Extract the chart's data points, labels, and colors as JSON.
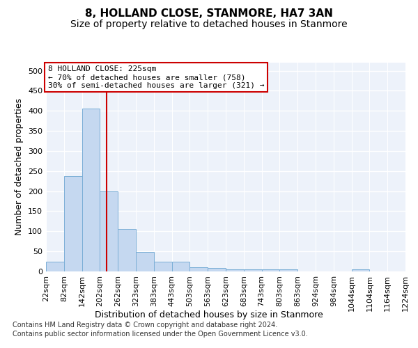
{
  "title": "8, HOLLAND CLOSE, STANMORE, HA7 3AN",
  "subtitle": "Size of property relative to detached houses in Stanmore",
  "xlabel": "Distribution of detached houses by size in Stanmore",
  "ylabel": "Number of detached properties",
  "footnote1": "Contains HM Land Registry data © Crown copyright and database right 2024.",
  "footnote2": "Contains public sector information licensed under the Open Government Licence v3.0.",
  "bin_edges": [
    22,
    82,
    142,
    202,
    262,
    323,
    383,
    443,
    503,
    563,
    623,
    683,
    743,
    803,
    863,
    924,
    984,
    1044,
    1104,
    1164,
    1224
  ],
  "bar_heights": [
    25,
    237,
    405,
    200,
    106,
    49,
    24,
    24,
    11,
    8,
    6,
    6,
    6,
    5,
    0,
    0,
    0,
    5,
    0,
    0
  ],
  "bar_color": "#c5d8f0",
  "bar_edge_color": "#7aaed6",
  "vline_x": 225,
  "vline_color": "#cc0000",
  "annotation_line1": "8 HOLLAND CLOSE: 225sqm",
  "annotation_line2": "← 70% of detached houses are smaller (758)",
  "annotation_line3": "30% of semi-detached houses are larger (321) →",
  "annotation_box_color": "#cc0000",
  "ylim": [
    0,
    520
  ],
  "yticks": [
    0,
    50,
    100,
    150,
    200,
    250,
    300,
    350,
    400,
    450,
    500
  ],
  "bg_color": "#edf2fa",
  "title_fontsize": 11,
  "subtitle_fontsize": 10,
  "xlabel_fontsize": 9,
  "ylabel_fontsize": 9,
  "tick_fontsize": 8,
  "annotation_fontsize": 8,
  "footnote_fontsize": 7
}
